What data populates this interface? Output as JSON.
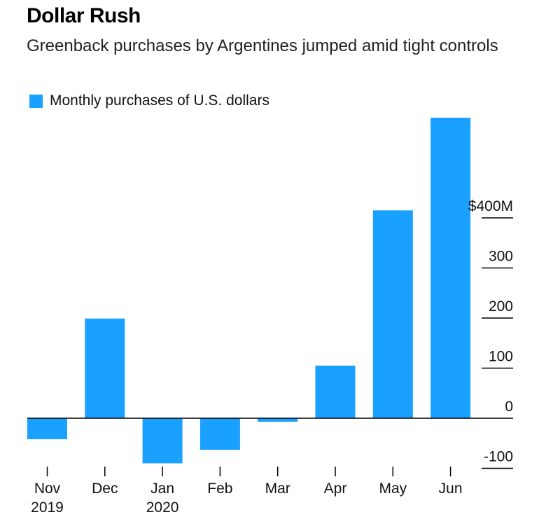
{
  "header": {
    "title": "Dollar Rush",
    "subtitle": "Greenback purchases by Argentines jumped amid tight controls"
  },
  "colors": {
    "bar": "#1aa0ff",
    "axis": "#000000"
  },
  "chart_data": {
    "type": "bar",
    "title": "Dollar Rush",
    "subtitle": "Greenback purchases by Argentines jumped amid tight controls",
    "categories": [
      "Nov 2019",
      "Dec",
      "Jan 2020",
      "Feb",
      "Mar",
      "Apr",
      "May",
      "Jun"
    ],
    "category_labels": [
      [
        "Nov",
        "2019"
      ],
      [
        "Dec"
      ],
      [
        "Jan",
        "2020"
      ],
      [
        "Feb"
      ],
      [
        "Mar"
      ],
      [
        "Apr"
      ],
      [
        "May"
      ],
      [
        "Jun"
      ]
    ],
    "series": [
      {
        "name": "Monthly purchases of U.S. dollars",
        "values": [
          -42,
          199,
          -90,
          -63,
          -7,
          105,
          415,
          600
        ]
      }
    ],
    "ylim": [
      -100,
      600
    ],
    "yticks": [
      -100,
      0,
      100,
      200,
      300,
      400
    ],
    "ytick_labels": [
      "-100",
      "0",
      "100",
      "200",
      "300",
      "$400M"
    ],
    "y_axis_position": "right",
    "legend_position": "top-left",
    "grid": false
  }
}
